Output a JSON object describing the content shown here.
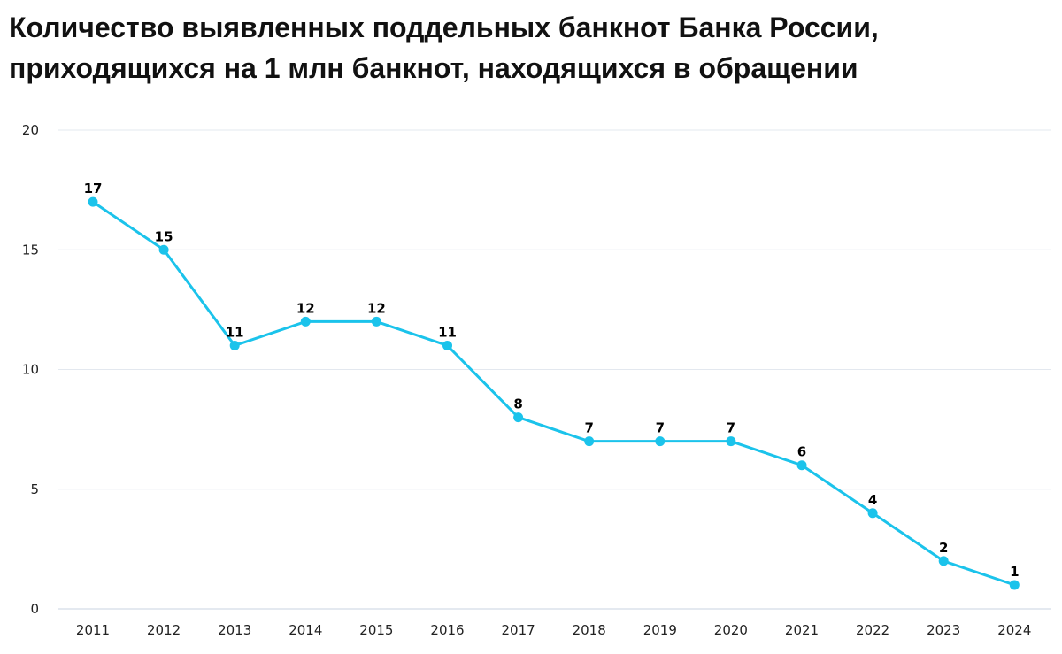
{
  "chart_data": {
    "type": "line",
    "title": "Количество выявленных поддельных банкнот Банка России, приходящихся на 1 млн банкнот, находящихся в обращении",
    "xlabel": "",
    "ylabel": "",
    "categories": [
      "2011",
      "2012",
      "2013",
      "2014",
      "2015",
      "2016",
      "2017",
      "2018",
      "2019",
      "2020",
      "2021",
      "2022",
      "2023",
      "2024"
    ],
    "series": [
      {
        "values": [
          17,
          15,
          11,
          12,
          12,
          11,
          8,
          7,
          7,
          7,
          6,
          4,
          2,
          1
        ],
        "color": "#1bc3eb"
      }
    ],
    "ylim": [
      0,
      20
    ],
    "yticks": [
      "0",
      "5",
      "10",
      "15",
      "20"
    ],
    "grid": true,
    "data_labels": true
  }
}
